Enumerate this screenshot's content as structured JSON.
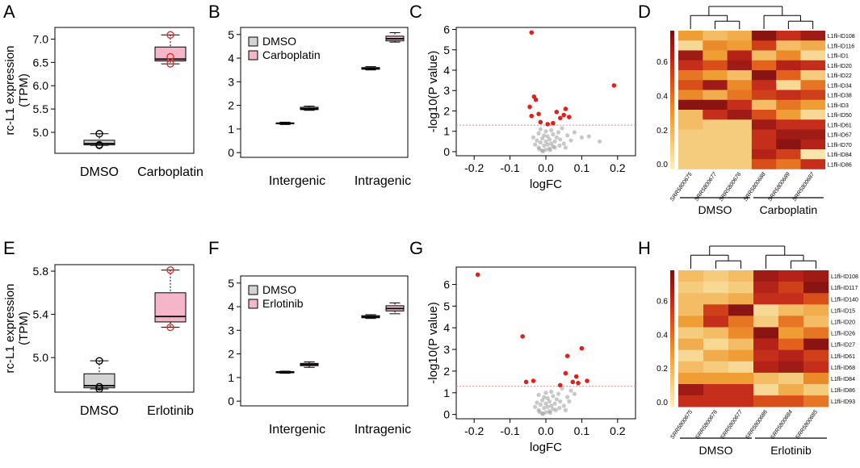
{
  "colors": {
    "box_dmso": "#d3d3d3",
    "box_treat": "#f4b6c8",
    "outlier_treat": "#e0302a",
    "point_sig": "#e0201a",
    "point_ns": "#9a9a9a",
    "threshold": "#e88a8a",
    "heat": [
      "#fcf3c4",
      "#f5c97a",
      "#ef9a30",
      "#e05a1a",
      "#c0261a",
      "#7d1010"
    ]
  },
  "chart_data": [
    {
      "panel": "A",
      "type": "box",
      "ylabel": "rc-L1 expression",
      "ylabel2": "(TPM)",
      "categories": [
        "DMSO",
        "Carboplatin"
      ],
      "ylim": [
        4.55,
        7.25
      ],
      "yticks": [
        5.0,
        5.5,
        6.0,
        6.5,
        7.0
      ],
      "ytick_labels": [
        "5.0",
        "5.5",
        "6.0",
        "6.5",
        "7.0"
      ],
      "boxes": [
        {
          "min": 4.72,
          "q1": 4.73,
          "median": 4.76,
          "q3": 4.83,
          "max": 4.97,
          "points": [
            4.97,
            4.73,
            4.72
          ],
          "style": "dmso"
        },
        {
          "min": 6.47,
          "q1": 6.53,
          "median": 6.57,
          "q3": 6.83,
          "max": 7.09,
          "points": [
            7.09,
            6.62,
            6.47
          ],
          "style": "treat"
        }
      ]
    },
    {
      "panel": "B",
      "type": "box",
      "categories": [
        "Intergenic",
        "Intragenic"
      ],
      "ylim": [
        -0.2,
        5.3
      ],
      "yticks": [
        0,
        1,
        2,
        3,
        4,
        5
      ],
      "ytick_labels": [
        "0",
        "1",
        "2",
        "3",
        "4",
        "5"
      ],
      "legend": [
        "DMSO",
        "Carboplatin"
      ],
      "groups": [
        {
          "dmso": {
            "min": 1.19,
            "q1": 1.22,
            "median": 1.24,
            "q3": 1.26,
            "max": 1.29
          },
          "treat": {
            "min": 1.79,
            "q1": 1.82,
            "median": 1.86,
            "q3": 1.92,
            "max": 1.97
          }
        },
        {
          "dmso": {
            "min": 3.5,
            "q1": 3.53,
            "median": 3.56,
            "q3": 3.6,
            "max": 3.64
          },
          "treat": {
            "min": 4.68,
            "q1": 4.73,
            "median": 4.82,
            "q3": 4.93,
            "max": 5.08
          }
        }
      ]
    },
    {
      "panel": "C",
      "type": "scatter",
      "xlabel": "logFC",
      "ylabel": "-log10(P value)",
      "xlim": [
        -0.25,
        0.25
      ],
      "ylim": [
        -0.2,
        6.1
      ],
      "xticks": [
        -0.2,
        -0.1,
        0.0,
        0.1,
        0.2
      ],
      "xtick_labels": [
        "-0.2",
        "-0.1",
        "0.0",
        "0.1",
        "0.2"
      ],
      "yticks": [
        0,
        1,
        2,
        3,
        4,
        5,
        6
      ],
      "ytick_labels": [
        "0",
        "1",
        "2",
        "3",
        "4",
        "5",
        "6"
      ],
      "threshold": 1.3,
      "sig_points": [
        [
          -0.04,
          5.85
        ],
        [
          0.19,
          3.25
        ],
        [
          -0.033,
          2.7
        ],
        [
          -0.028,
          2.55
        ],
        [
          -0.045,
          2.2
        ],
        [
          -0.02,
          1.85
        ],
        [
          -0.04,
          1.75
        ],
        [
          -0.015,
          1.45
        ],
        [
          0.005,
          1.35
        ],
        [
          0.02,
          1.4
        ],
        [
          0.04,
          1.65
        ],
        [
          0.05,
          1.8
        ],
        [
          0.055,
          2.1
        ],
        [
          0.065,
          1.7
        ],
        [
          0.03,
          1.95
        ]
      ],
      "ns_points": [
        [
          -0.01,
          0.05
        ],
        [
          0.0,
          0.1
        ],
        [
          0.01,
          0.15
        ],
        [
          -0.02,
          0.2
        ],
        [
          0.02,
          0.25
        ],
        [
          -0.005,
          0.3
        ],
        [
          0.005,
          0.35
        ],
        [
          0.015,
          0.4
        ],
        [
          -0.015,
          0.45
        ],
        [
          0.0,
          0.5
        ],
        [
          0.025,
          0.5
        ],
        [
          -0.025,
          0.55
        ],
        [
          0.01,
          0.6
        ],
        [
          -0.01,
          0.65
        ],
        [
          0.03,
          0.7
        ],
        [
          0.005,
          0.75
        ],
        [
          -0.005,
          0.8
        ],
        [
          0.02,
          0.85
        ],
        [
          -0.02,
          0.9
        ],
        [
          0.035,
          0.95
        ],
        [
          0.0,
          1.0
        ],
        [
          0.015,
          1.05
        ],
        [
          -0.015,
          1.1
        ],
        [
          0.04,
          0.6
        ],
        [
          0.05,
          0.4
        ],
        [
          0.06,
          0.8
        ],
        [
          0.07,
          0.55
        ],
        [
          0.08,
          0.95
        ],
        [
          0.1,
          0.7
        ],
        [
          0.12,
          0.75
        ],
        [
          0.15,
          0.5
        ],
        [
          -0.03,
          0.35
        ],
        [
          -0.035,
          0.7
        ],
        [
          0.045,
          1.15
        ],
        [
          -0.008,
          0.02
        ],
        [
          0.012,
          0.08
        ],
        [
          0.025,
          0.2
        ],
        [
          -0.018,
          0.12
        ],
        [
          0.038,
          0.3
        ],
        [
          0.055,
          0.2
        ]
      ]
    },
    {
      "panel": "D",
      "type": "heatmap",
      "scale_ticks": [
        "0.6",
        "0.4",
        "0.2",
        "0.0"
      ],
      "scale_tick_values": [
        0.6,
        0.4,
        0.2,
        0.0
      ],
      "columns": [
        "SRR5800675",
        "SRR5800677",
        "SRR5800676",
        "SRR5800688",
        "SRR5800689",
        "SRR5800687"
      ],
      "rows": [
        "L1fli-ID108",
        "L1fli-ID116",
        "L1fli-ID1",
        "L1fli-ID20",
        "L1fli-ID22",
        "L1fli-ID34",
        "L1fli-ID38",
        "L1fli-ID3",
        "L1fli-ID50",
        "L1fli-ID61",
        "L1fli-ID67",
        "L1fli-ID70",
        "L1fli-ID84",
        "L1fli-ID86"
      ],
      "values": [
        [
          0.3,
          0.2,
          0.25,
          0.75,
          0.6,
          0.7
        ],
        [
          0.1,
          0.35,
          0.3,
          0.55,
          0.2,
          0.25
        ],
        [
          0.7,
          0.3,
          0.65,
          0.2,
          0.35,
          0.1
        ],
        [
          0.6,
          0.5,
          0.7,
          0.45,
          0.65,
          0.6
        ],
        [
          0.4,
          0.3,
          0.2,
          0.75,
          0.45,
          0.15
        ],
        [
          0.5,
          0.7,
          0.35,
          0.6,
          0.1,
          0.4
        ],
        [
          0.35,
          0.25,
          0.4,
          0.55,
          0.6,
          0.55
        ],
        [
          0.75,
          0.75,
          0.6,
          0.2,
          0.4,
          0.3
        ],
        [
          0.2,
          0.6,
          0.7,
          0.5,
          0.3,
          0.1
        ],
        [
          0.2,
          0.15,
          0.15,
          0.7,
          0.6,
          0.6
        ],
        [
          0.15,
          0.15,
          0.15,
          0.6,
          0.7,
          0.7
        ],
        [
          0.15,
          0.15,
          0.15,
          0.6,
          0.75,
          0.65
        ],
        [
          0.15,
          0.15,
          0.15,
          0.65,
          0.55,
          0.05
        ],
        [
          0.15,
          0.15,
          0.15,
          0.5,
          0.4,
          0.6
        ]
      ],
      "groups": [
        {
          "label": "DMSO",
          "span": [
            0,
            2
          ]
        },
        {
          "label": "Carboplatin",
          "span": [
            3,
            5
          ]
        }
      ],
      "tree": {
        "top_split": 3,
        "left_pair": [
          1,
          2
        ],
        "right_pair": [
          4,
          5
        ]
      }
    },
    {
      "panel": "E",
      "type": "box",
      "ylabel": "rc-L1 expression",
      "ylabel2": "(TPM)",
      "categories": [
        "DMSO",
        "Erlotinib"
      ],
      "ylim": [
        4.68,
        5.86
      ],
      "yticks": [
        5.0,
        5.4,
        5.8
      ],
      "ytick_labels": [
        "5.0",
        "5.4",
        "5.8"
      ],
      "boxes": [
        {
          "min": 4.71,
          "q1": 4.72,
          "median": 4.74,
          "q3": 4.85,
          "max": 4.97,
          "points": [
            4.97,
            4.73,
            4.71
          ],
          "style": "dmso"
        },
        {
          "min": 5.28,
          "q1": 5.33,
          "median": 5.38,
          "q3": 5.6,
          "max": 5.81,
          "points": [
            5.81,
            5.28
          ],
          "style": "treat"
        }
      ]
    },
    {
      "panel": "F",
      "type": "box",
      "categories": [
        "Intergenic",
        "Intragenic"
      ],
      "ylim": [
        -0.2,
        5.3
      ],
      "yticks": [
        0,
        1,
        2,
        3,
        4,
        5
      ],
      "ytick_labels": [
        "0",
        "1",
        "2",
        "3",
        "4",
        "5"
      ],
      "legend": [
        "DMSO",
        "Erlotinib"
      ],
      "groups": [
        {
          "dmso": {
            "min": 1.18,
            "q1": 1.2,
            "median": 1.23,
            "q3": 1.25,
            "max": 1.27
          },
          "treat": {
            "min": 1.43,
            "q1": 1.5,
            "median": 1.55,
            "q3": 1.6,
            "max": 1.66
          }
        },
        {
          "dmso": {
            "min": 3.5,
            "q1": 3.53,
            "median": 3.57,
            "q3": 3.62,
            "max": 3.66
          },
          "treat": {
            "min": 3.7,
            "q1": 3.82,
            "median": 3.92,
            "q3": 4.04,
            "max": 4.16
          }
        }
      ]
    },
    {
      "panel": "G",
      "type": "scatter",
      "xlabel": "logFC",
      "ylabel": "-log10(P value)",
      "xlim": [
        -0.25,
        0.25
      ],
      "ylim": [
        -0.2,
        6.8
      ],
      "xticks": [
        -0.2,
        -0.1,
        0.0,
        0.1,
        0.2
      ],
      "xtick_labels": [
        "-0.2",
        "-0.1",
        "0.0",
        "0.1",
        "0.2"
      ],
      "yticks": [
        0,
        1,
        2,
        3,
        4,
        5,
        6
      ],
      "ytick_labels": [
        "0",
        "1",
        "2",
        "3",
        "4",
        "5",
        "6"
      ],
      "threshold": 1.3,
      "sig_points": [
        [
          -0.19,
          6.45
        ],
        [
          -0.065,
          3.6
        ],
        [
          -0.055,
          1.5
        ],
        [
          -0.035,
          1.55
        ],
        [
          0.06,
          2.7
        ],
        [
          0.1,
          3.05
        ],
        [
          0.055,
          1.9
        ],
        [
          0.085,
          1.75
        ],
        [
          0.09,
          1.45
        ],
        [
          0.115,
          1.55
        ],
        [
          0.075,
          1.5
        ],
        [
          0.04,
          1.35
        ]
      ],
      "ns_points": [
        [
          -0.01,
          0.05
        ],
        [
          0.0,
          0.1
        ],
        [
          0.01,
          0.15
        ],
        [
          -0.02,
          0.2
        ],
        [
          0.02,
          0.25
        ],
        [
          -0.005,
          0.3
        ],
        [
          0.005,
          0.35
        ],
        [
          0.015,
          0.4
        ],
        [
          -0.015,
          0.45
        ],
        [
          0.0,
          0.5
        ],
        [
          0.025,
          0.5
        ],
        [
          -0.025,
          0.55
        ],
        [
          0.01,
          0.6
        ],
        [
          -0.01,
          0.65
        ],
        [
          0.03,
          0.7
        ],
        [
          0.005,
          0.75
        ],
        [
          -0.005,
          0.8
        ],
        [
          0.02,
          0.85
        ],
        [
          -0.02,
          0.9
        ],
        [
          0.035,
          0.95
        ],
        [
          0.0,
          1.0
        ],
        [
          0.015,
          1.05
        ],
        [
          0.04,
          0.6
        ],
        [
          0.05,
          0.4
        ],
        [
          0.06,
          0.8
        ],
        [
          0.07,
          1.1
        ],
        [
          0.08,
          0.95
        ],
        [
          0.045,
          1.2
        ],
        [
          -0.03,
          0.35
        ],
        [
          -0.008,
          0.02
        ],
        [
          0.012,
          0.08
        ],
        [
          0.028,
          0.2
        ],
        [
          -0.018,
          0.12
        ],
        [
          0.038,
          0.3
        ],
        [
          0.055,
          0.2
        ],
        [
          0.065,
          0.6
        ]
      ]
    },
    {
      "panel": "H",
      "type": "heatmap",
      "scale_ticks": [
        "0.6",
        "0.4",
        "0.2",
        "0.0"
      ],
      "scale_tick_values": [
        0.6,
        0.4,
        0.2,
        0.0
      ],
      "columns": [
        "SRR5800675",
        "SRR5800676",
        "SRR5800677",
        "SRR5800686",
        "SRR5800684",
        "SRR5800685"
      ],
      "rows": [
        "L1fli-ID108",
        "L1fli-ID117",
        "L1fli-ID140",
        "L1fli-ID15",
        "L1fli-ID20",
        "L1fli-ID26",
        "L1fli-ID27",
        "L1fli-ID61",
        "L1fli-ID68",
        "L1fli-ID84",
        "L1fli-ID86",
        "L1fli-ID93"
      ],
      "values": [
        [
          0.2,
          0.15,
          0.2,
          0.7,
          0.65,
          0.7
        ],
        [
          0.15,
          0.1,
          0.15,
          0.65,
          0.55,
          0.75
        ],
        [
          0.2,
          0.2,
          0.25,
          0.6,
          0.6,
          0.5
        ],
        [
          0.2,
          0.55,
          0.75,
          0.1,
          0.2,
          0.25
        ],
        [
          0.3,
          0.6,
          0.4,
          0.15,
          0.4,
          0.2
        ],
        [
          0.15,
          0.2,
          0.35,
          0.75,
          0.3,
          0.4
        ],
        [
          0.25,
          0.1,
          0.2,
          0.65,
          0.45,
          0.75
        ],
        [
          0.1,
          0.25,
          0.3,
          0.6,
          0.65,
          0.55
        ],
        [
          0.2,
          0.15,
          0.1,
          0.65,
          0.7,
          0.6
        ],
        [
          0.3,
          0.3,
          0.3,
          0.2,
          0.15,
          0.35
        ],
        [
          0.7,
          0.6,
          0.6,
          0.1,
          0.25,
          0.15
        ],
        [
          0.6,
          0.6,
          0.6,
          0.5,
          0.5,
          0.4
        ]
      ],
      "groups": [
        {
          "label": "DMSO",
          "span": [
            0,
            2
          ]
        },
        {
          "label": "Erlotinib",
          "span": [
            3,
            5
          ]
        }
      ],
      "tree": {
        "top_split": 3,
        "left_pair": [
          1,
          2
        ],
        "right_pair": [
          4,
          5
        ]
      }
    }
  ]
}
